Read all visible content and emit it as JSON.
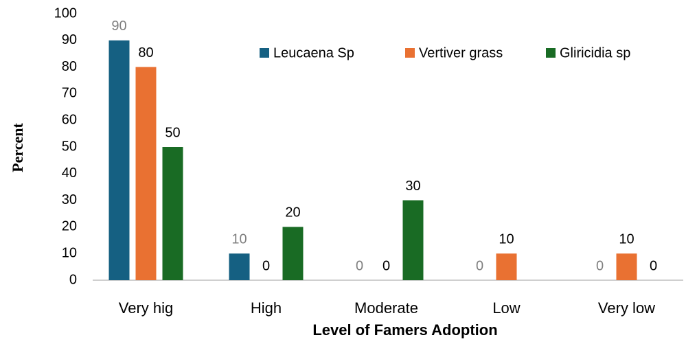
{
  "chart_data": {
    "type": "bar",
    "x_label": "Level of Famers Adoption",
    "y_label": "Percent",
    "categories": [
      "Very hig",
      "High",
      "Moderate",
      "Low",
      "Very low"
    ],
    "series": [
      {
        "name": "Leucaena Sp",
        "color": "#156082",
        "label_color": "#7f7f7f",
        "values": [
          90,
          10,
          0,
          0,
          0
        ]
      },
      {
        "name": "Vertiver grass",
        "color": "#e97132",
        "label_color": "#000000",
        "values": [
          80,
          0,
          0,
          10,
          10
        ]
      },
      {
        "name": "Gliricidia sp",
        "color": "#196b24",
        "label_color": "#000000",
        "values": [
          50,
          20,
          30,
          null,
          0
        ]
      }
    ],
    "ylim": [
      0,
      100
    ],
    "yticks": [
      0,
      10,
      20,
      30,
      40,
      50,
      60,
      70,
      80,
      90,
      100
    ],
    "grid": false,
    "legend": "top-right"
  }
}
